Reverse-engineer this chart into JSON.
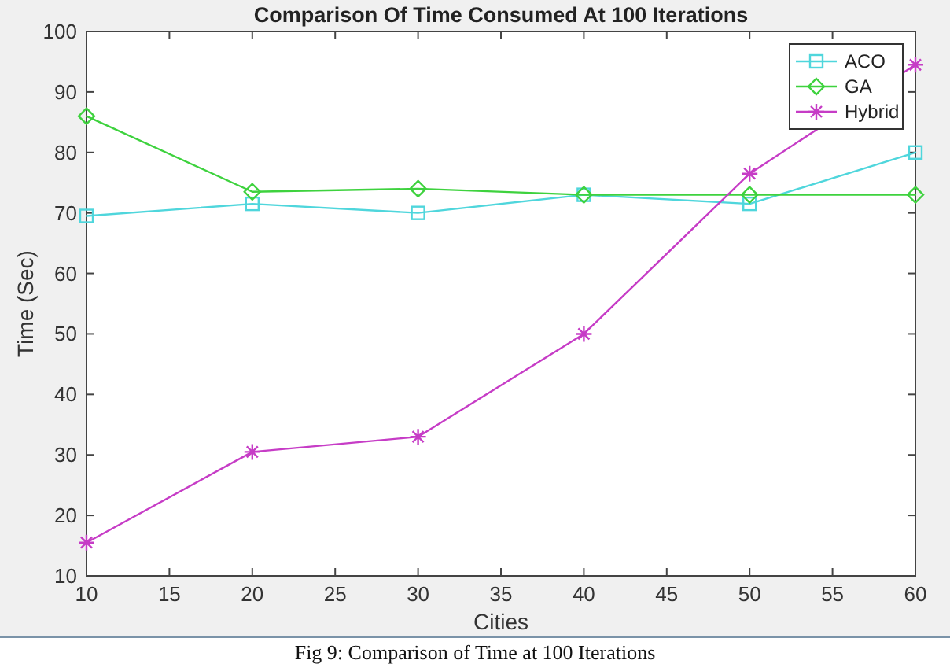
{
  "chart_data": {
    "type": "line",
    "title": "Comparison Of Time Consumed At 100 Iterations",
    "xlabel": "Cities",
    "ylabel": "Time (Sec)",
    "x": [
      10,
      20,
      30,
      40,
      50,
      60
    ],
    "series": [
      {
        "name": "ACO",
        "color": "#4fd6dc",
        "marker": "square",
        "values": [
          69.5,
          71.5,
          70,
          73,
          71.5,
          80
        ]
      },
      {
        "name": "GA",
        "color": "#3ed23e",
        "marker": "diamond",
        "values": [
          86,
          73.5,
          74,
          73,
          73,
          73
        ]
      },
      {
        "name": "Hybrid",
        "color": "#c63cc6",
        "marker": "cross",
        "values": [
          15.5,
          30.5,
          33,
          50,
          76.5,
          94.5
        ]
      }
    ],
    "xlim": [
      10,
      60
    ],
    "xticks": [
      10,
      15,
      20,
      25,
      30,
      35,
      40,
      45,
      50,
      55,
      60
    ],
    "ylim": [
      10,
      100
    ],
    "yticks": [
      10,
      20,
      30,
      40,
      50,
      60,
      70,
      80,
      90,
      100
    ],
    "grid": false,
    "legend": "top right",
    "line_style": "solid",
    "annotations": [
      "Fig 9: Comparison of Time at 100 Iterations"
    ]
  }
}
